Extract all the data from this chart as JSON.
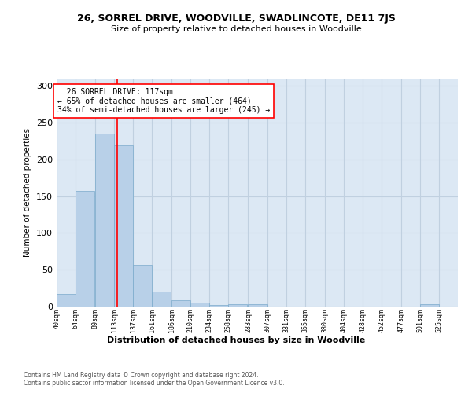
{
  "title1": "26, SORREL DRIVE, WOODVILLE, SWADLINCOTE, DE11 7JS",
  "title2": "Size of property relative to detached houses in Woodville",
  "xlabel": "Distribution of detached houses by size in Woodville",
  "ylabel": "Number of detached properties",
  "footer1": "Contains HM Land Registry data © Crown copyright and database right 2024.",
  "footer2": "Contains public sector information licensed under the Open Government Licence v3.0.",
  "annotation_line1": "  26 SORREL DRIVE: 117sqm  ",
  "annotation_line2": "← 65% of detached houses are smaller (464)",
  "annotation_line3": "34% of semi-detached houses are larger (245) →",
  "bar_color": "#b8d0e8",
  "bar_edge_color": "#7aaacb",
  "grid_color": "#c0d0e0",
  "background_color": "#dce8f4",
  "red_line_x": 117,
  "bins": [
    40,
    64,
    89,
    113,
    137,
    161,
    186,
    210,
    234,
    258,
    283,
    307,
    331,
    355,
    380,
    404,
    428,
    452,
    477,
    501,
    525
  ],
  "bin_labels": [
    "40sqm",
    "64sqm",
    "89sqm",
    "113sqm",
    "137sqm",
    "161sqm",
    "186sqm",
    "210sqm",
    "234sqm",
    "258sqm",
    "283sqm",
    "307sqm",
    "331sqm",
    "355sqm",
    "380sqm",
    "404sqm",
    "428sqm",
    "452sqm",
    "477sqm",
    "501sqm",
    "525sqm"
  ],
  "bar_heights": [
    17,
    157,
    235,
    219,
    57,
    20,
    9,
    5,
    2,
    3,
    3,
    0,
    0,
    0,
    0,
    0,
    0,
    0,
    0,
    3,
    0
  ],
  "ylim": [
    0,
    310
  ],
  "yticks": [
    0,
    50,
    100,
    150,
    200,
    250,
    300
  ]
}
